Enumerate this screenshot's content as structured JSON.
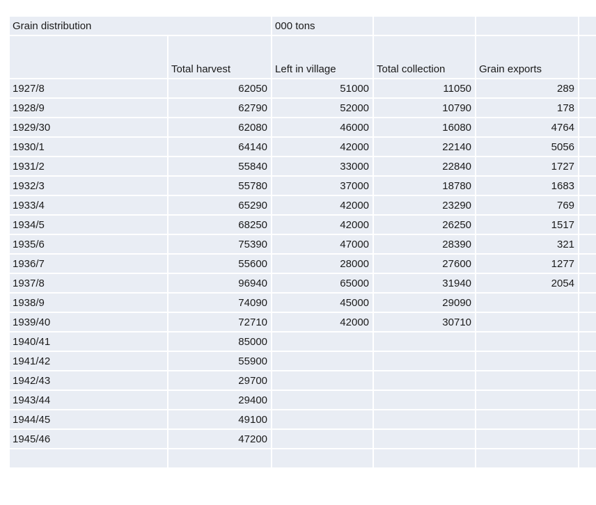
{
  "table": {
    "title": "Grain distribution",
    "unit": "000 tons",
    "columns": [
      "Total harvest",
      "Left in village",
      "Total collection",
      "Grain exports"
    ],
    "rows": [
      {
        "year": "1927/8",
        "values": [
          "62050",
          "51000",
          "11050",
          "289"
        ]
      },
      {
        "year": "1928/9",
        "values": [
          "62790",
          "52000",
          "10790",
          "178"
        ]
      },
      {
        "year": "1929/30",
        "values": [
          "62080",
          "46000",
          "16080",
          "4764"
        ]
      },
      {
        "year": "1930/1",
        "values": [
          "64140",
          "42000",
          "22140",
          "5056"
        ]
      },
      {
        "year": "1931/2",
        "values": [
          "55840",
          "33000",
          "22840",
          "1727"
        ]
      },
      {
        "year": "1932/3",
        "values": [
          "55780",
          "37000",
          "18780",
          "1683"
        ]
      },
      {
        "year": "1933/4",
        "values": [
          "65290",
          "42000",
          "23290",
          "769"
        ]
      },
      {
        "year": "1934/5",
        "values": [
          "68250",
          "42000",
          "26250",
          "1517"
        ]
      },
      {
        "year": "1935/6",
        "values": [
          "75390",
          "47000",
          "28390",
          "321"
        ]
      },
      {
        "year": "1936/7",
        "values": [
          "55600",
          "28000",
          "27600",
          "1277"
        ]
      },
      {
        "year": "1937/8",
        "values": [
          "96940",
          "65000",
          "31940",
          "2054"
        ]
      },
      {
        "year": "1938/9",
        "values": [
          "74090",
          "45000",
          "29090",
          ""
        ]
      },
      {
        "year": "1939/40",
        "values": [
          "72710",
          "42000",
          "30710",
          ""
        ]
      },
      {
        "year": "1940/41",
        "values": [
          "85000",
          "",
          "",
          ""
        ]
      },
      {
        "year": "1941/42",
        "values": [
          "55900",
          "",
          "",
          ""
        ]
      },
      {
        "year": "1942/43",
        "values": [
          "29700",
          "",
          "",
          ""
        ]
      },
      {
        "year": "1943/44",
        "values": [
          "29400",
          "",
          "",
          ""
        ]
      },
      {
        "year": "1944/45",
        "values": [
          "49100",
          "",
          "",
          ""
        ]
      },
      {
        "year": "1945/46",
        "values": [
          "47200",
          "",
          "",
          ""
        ]
      },
      {
        "year": "",
        "values": [
          "",
          "",
          "",
          ""
        ]
      }
    ],
    "colors": {
      "cell_fill": "#e9edf4",
      "gridline": "#ffffff",
      "text": "#1a1a1a"
    }
  }
}
